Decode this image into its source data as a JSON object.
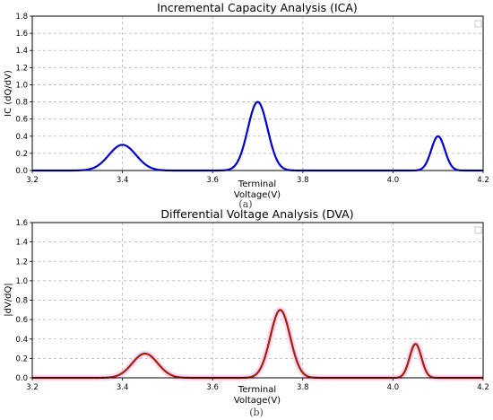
{
  "chart_data": [
    {
      "type": "line",
      "title": "Incremental Capacity Analysis (ICA)",
      "xlabel_line1": "Terminal",
      "xlabel_line2": "Voltage(V)",
      "ylabel": "IC (dQ/dV)",
      "caption": "(a)",
      "xlim": [
        3.2,
        4.2
      ],
      "ylim": [
        0,
        1.8
      ],
      "xticks": [
        "3.2",
        "3.4",
        "3.6",
        "3.8",
        "4.0",
        "4.2"
      ],
      "yticks": [
        "0.0",
        "0.2",
        "0.4",
        "0.6",
        "0.8",
        "1.0",
        "1.2",
        "1.4",
        "1.6",
        "1.8"
      ],
      "grid": true,
      "legend": "top-right",
      "series": [
        {
          "color": "#0000cc",
          "peaks": [
            {
              "center": 3.4,
              "height": 0.3,
              "sigma": 0.03
            },
            {
              "center": 3.7,
              "height": 0.8,
              "sigma": 0.022
            },
            {
              "center": 4.1,
              "height": 0.4,
              "sigma": 0.015
            }
          ],
          "x": [
            3.2,
            3.3,
            3.35,
            3.4,
            3.45,
            3.5,
            3.6,
            3.65,
            3.7,
            3.75,
            3.8,
            4.0,
            4.05,
            4.1,
            4.15,
            4.2
          ],
          "y": [
            0.0,
            0.01,
            0.08,
            0.3,
            0.08,
            0.01,
            0.0,
            0.06,
            0.8,
            0.06,
            0.0,
            0.0,
            0.02,
            0.4,
            0.02,
            0.0
          ]
        }
      ]
    },
    {
      "type": "line",
      "title": "Differential Voltage Analysis (DVA)",
      "xlabel_line1": "Terminal",
      "xlabel_line2": "Voltage(V)",
      "ylabel": "|dV/dQ|",
      "caption": "(b)",
      "xlim": [
        3.2,
        4.2
      ],
      "ylim": [
        0,
        1.6
      ],
      "xticks": [
        "3.2",
        "3.4",
        "3.6",
        "3.8",
        "4.0",
        "4.2"
      ],
      "yticks": [
        "0.0",
        "0.2",
        "0.4",
        "0.6",
        "0.8",
        "1.0",
        "1.2",
        "1.4",
        "1.6"
      ],
      "grid": true,
      "legend": "top-right",
      "series": [
        {
          "color": "#a0200a",
          "band_color": "#ffb6e6",
          "peaks": [
            {
              "center": 3.45,
              "height": 0.25,
              "sigma": 0.028
            },
            {
              "center": 3.75,
              "height": 0.7,
              "sigma": 0.022
            },
            {
              "center": 4.05,
              "height": 0.35,
              "sigma": 0.013
            }
          ],
          "x": [
            3.2,
            3.35,
            3.4,
            3.45,
            3.5,
            3.55,
            3.7,
            3.75,
            3.8,
            4.0,
            4.05,
            4.1,
            4.2
          ],
          "y": [
            0.0,
            0.0,
            0.05,
            0.25,
            0.05,
            0.0,
            0.06,
            0.7,
            0.06,
            0.0,
            0.35,
            0.0,
            0.0
          ]
        }
      ]
    }
  ]
}
